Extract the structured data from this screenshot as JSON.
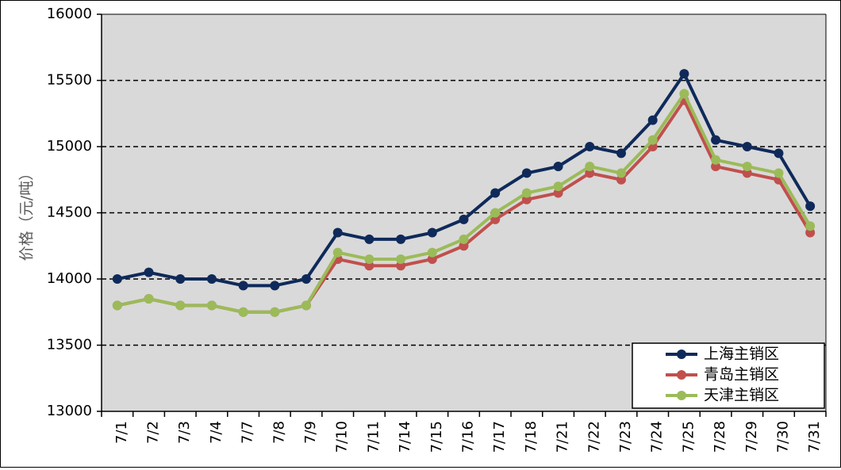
{
  "chart_data": {
    "type": "line",
    "title": "",
    "xlabel": "",
    "ylabel": "价格（元/吨）",
    "ylim": [
      13000,
      16000
    ],
    "y_ticks": [
      13000,
      13500,
      14000,
      14500,
      15000,
      15500,
      16000
    ],
    "grid": "dashed horizontal",
    "legend_position": "bottom-right",
    "categories": [
      "7/1",
      "7/2",
      "7/3",
      "7/4",
      "7/7",
      "7/8",
      "7/9",
      "7/10",
      "7/11",
      "7/14",
      "7/15",
      "7/16",
      "7/17",
      "7/18",
      "7/21",
      "7/22",
      "7/23",
      "7/24",
      "7/25",
      "7/28",
      "7/29",
      "7/30",
      "7/31"
    ],
    "series": [
      {
        "name": "上海主销区",
        "color": "#0f2a5a",
        "values": [
          14000,
          14050,
          14000,
          14000,
          13950,
          13950,
          14000,
          14350,
          14300,
          14300,
          14350,
          14450,
          14650,
          14800,
          14850,
          15000,
          14950,
          15200,
          15550,
          15050,
          15000,
          14950,
          14550
        ]
      },
      {
        "name": "青岛主销区",
        "color": "#c0504d",
        "values": [
          13800,
          13850,
          13800,
          13800,
          13750,
          13750,
          13800,
          14150,
          14100,
          14100,
          14150,
          14250,
          14450,
          14600,
          14650,
          14800,
          14750,
          15000,
          15350,
          14850,
          14800,
          14750,
          14350
        ]
      },
      {
        "name": "天津主销区",
        "color": "#9bbb59",
        "values": [
          13800,
          13850,
          13800,
          13800,
          13750,
          13750,
          13800,
          14200,
          14150,
          14150,
          14200,
          14300,
          14500,
          14650,
          14700,
          14850,
          14800,
          15050,
          15400,
          14900,
          14850,
          14800,
          14400
        ]
      }
    ]
  }
}
